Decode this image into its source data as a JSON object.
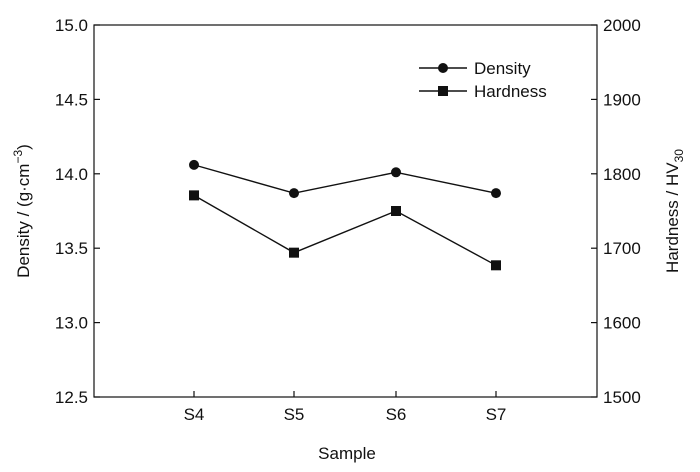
{
  "chart_data": {
    "type": "line",
    "categories": [
      "S4",
      "S5",
      "S6",
      "S7"
    ],
    "xlabel": "Sample",
    "y_left": {
      "label_main": "Density / (g·cm",
      "label_sup": "−3",
      "label_end": ")",
      "ylim": [
        12.5,
        15.0
      ],
      "ticks": [
        "12.5",
        "13.0",
        "13.5",
        "14.0",
        "14.5",
        "15.0"
      ]
    },
    "y_right": {
      "label_main": "Hardness / HV",
      "label_sub": "30",
      "ylim": [
        1500,
        2000
      ],
      "ticks": [
        "1500",
        "1600",
        "1700",
        "1800",
        "1900",
        "2000"
      ]
    },
    "series": [
      {
        "name": "Density",
        "axis": "left",
        "marker": "circle",
        "values": [
          14.06,
          13.87,
          14.01,
          13.87
        ],
        "errors": [
          0,
          0,
          0,
          0
        ]
      },
      {
        "name": "Hardness",
        "axis": "right",
        "marker": "square",
        "values": [
          1771,
          1694,
          1750,
          1677
        ],
        "errors": [
          5,
          4,
          5,
          1
        ]
      }
    ],
    "legend_position": "top-right",
    "grid": false
  }
}
